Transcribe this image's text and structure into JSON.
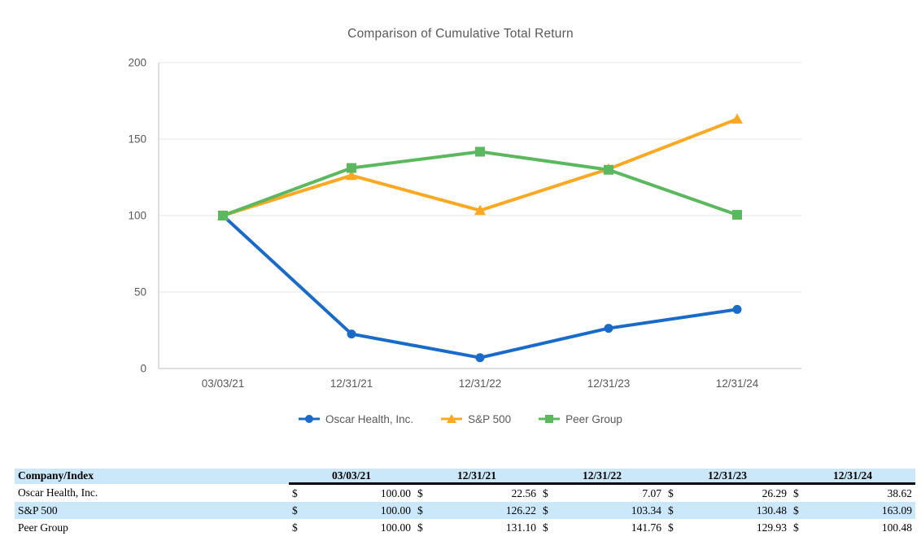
{
  "page": {
    "background": "#ffffff"
  },
  "chart_data": {
    "type": "line",
    "title": "Comparison of Cumulative Total Return",
    "title_color": "#595959",
    "axis_label_color": "#595959",
    "gridline_color": "#e4e4e4",
    "axis_line_color": "#bfbfbf",
    "categories": [
      "03/03/21",
      "12/31/21",
      "12/31/22",
      "12/31/23",
      "12/31/24"
    ],
    "series": [
      {
        "name": "Oscar Health, Inc.",
        "marker": "circle",
        "color": "#1A6BC8",
        "values": [
          100.0,
          22.56,
          7.07,
          26.29,
          38.62
        ]
      },
      {
        "name": "S&P 500",
        "marker": "triangle",
        "color": "#FCA823",
        "values": [
          100.0,
          126.22,
          103.34,
          130.48,
          163.09
        ]
      },
      {
        "name": "Peer Group",
        "marker": "square",
        "color": "#5CB85F",
        "values": [
          100.0,
          131.1,
          141.76,
          129.93,
          100.48
        ]
      }
    ],
    "ylim": [
      0,
      200
    ],
    "yticks": [
      0,
      50,
      100,
      150,
      200
    ],
    "grid": true,
    "legend_position": "bottom"
  },
  "table": {
    "columns": [
      "Company/Index",
      "03/03/21",
      "12/31/21",
      "12/31/22",
      "12/31/23",
      "12/31/24"
    ],
    "currency_symbol": "$",
    "header_bg": "#CBE7FA",
    "stripe_bg": "#CBE7FA",
    "rows": [
      {
        "label": "Oscar Health, Inc.",
        "values": [
          "100.00",
          "22.56",
          "7.07",
          "26.29",
          "38.62"
        ]
      },
      {
        "label": "S&P 500",
        "values": [
          "100.00",
          "126.22",
          "103.34",
          "130.48",
          "163.09"
        ]
      },
      {
        "label": "Peer Group",
        "values": [
          "100.00",
          "131.10",
          "141.76",
          "129.93",
          "100.48"
        ]
      }
    ]
  }
}
